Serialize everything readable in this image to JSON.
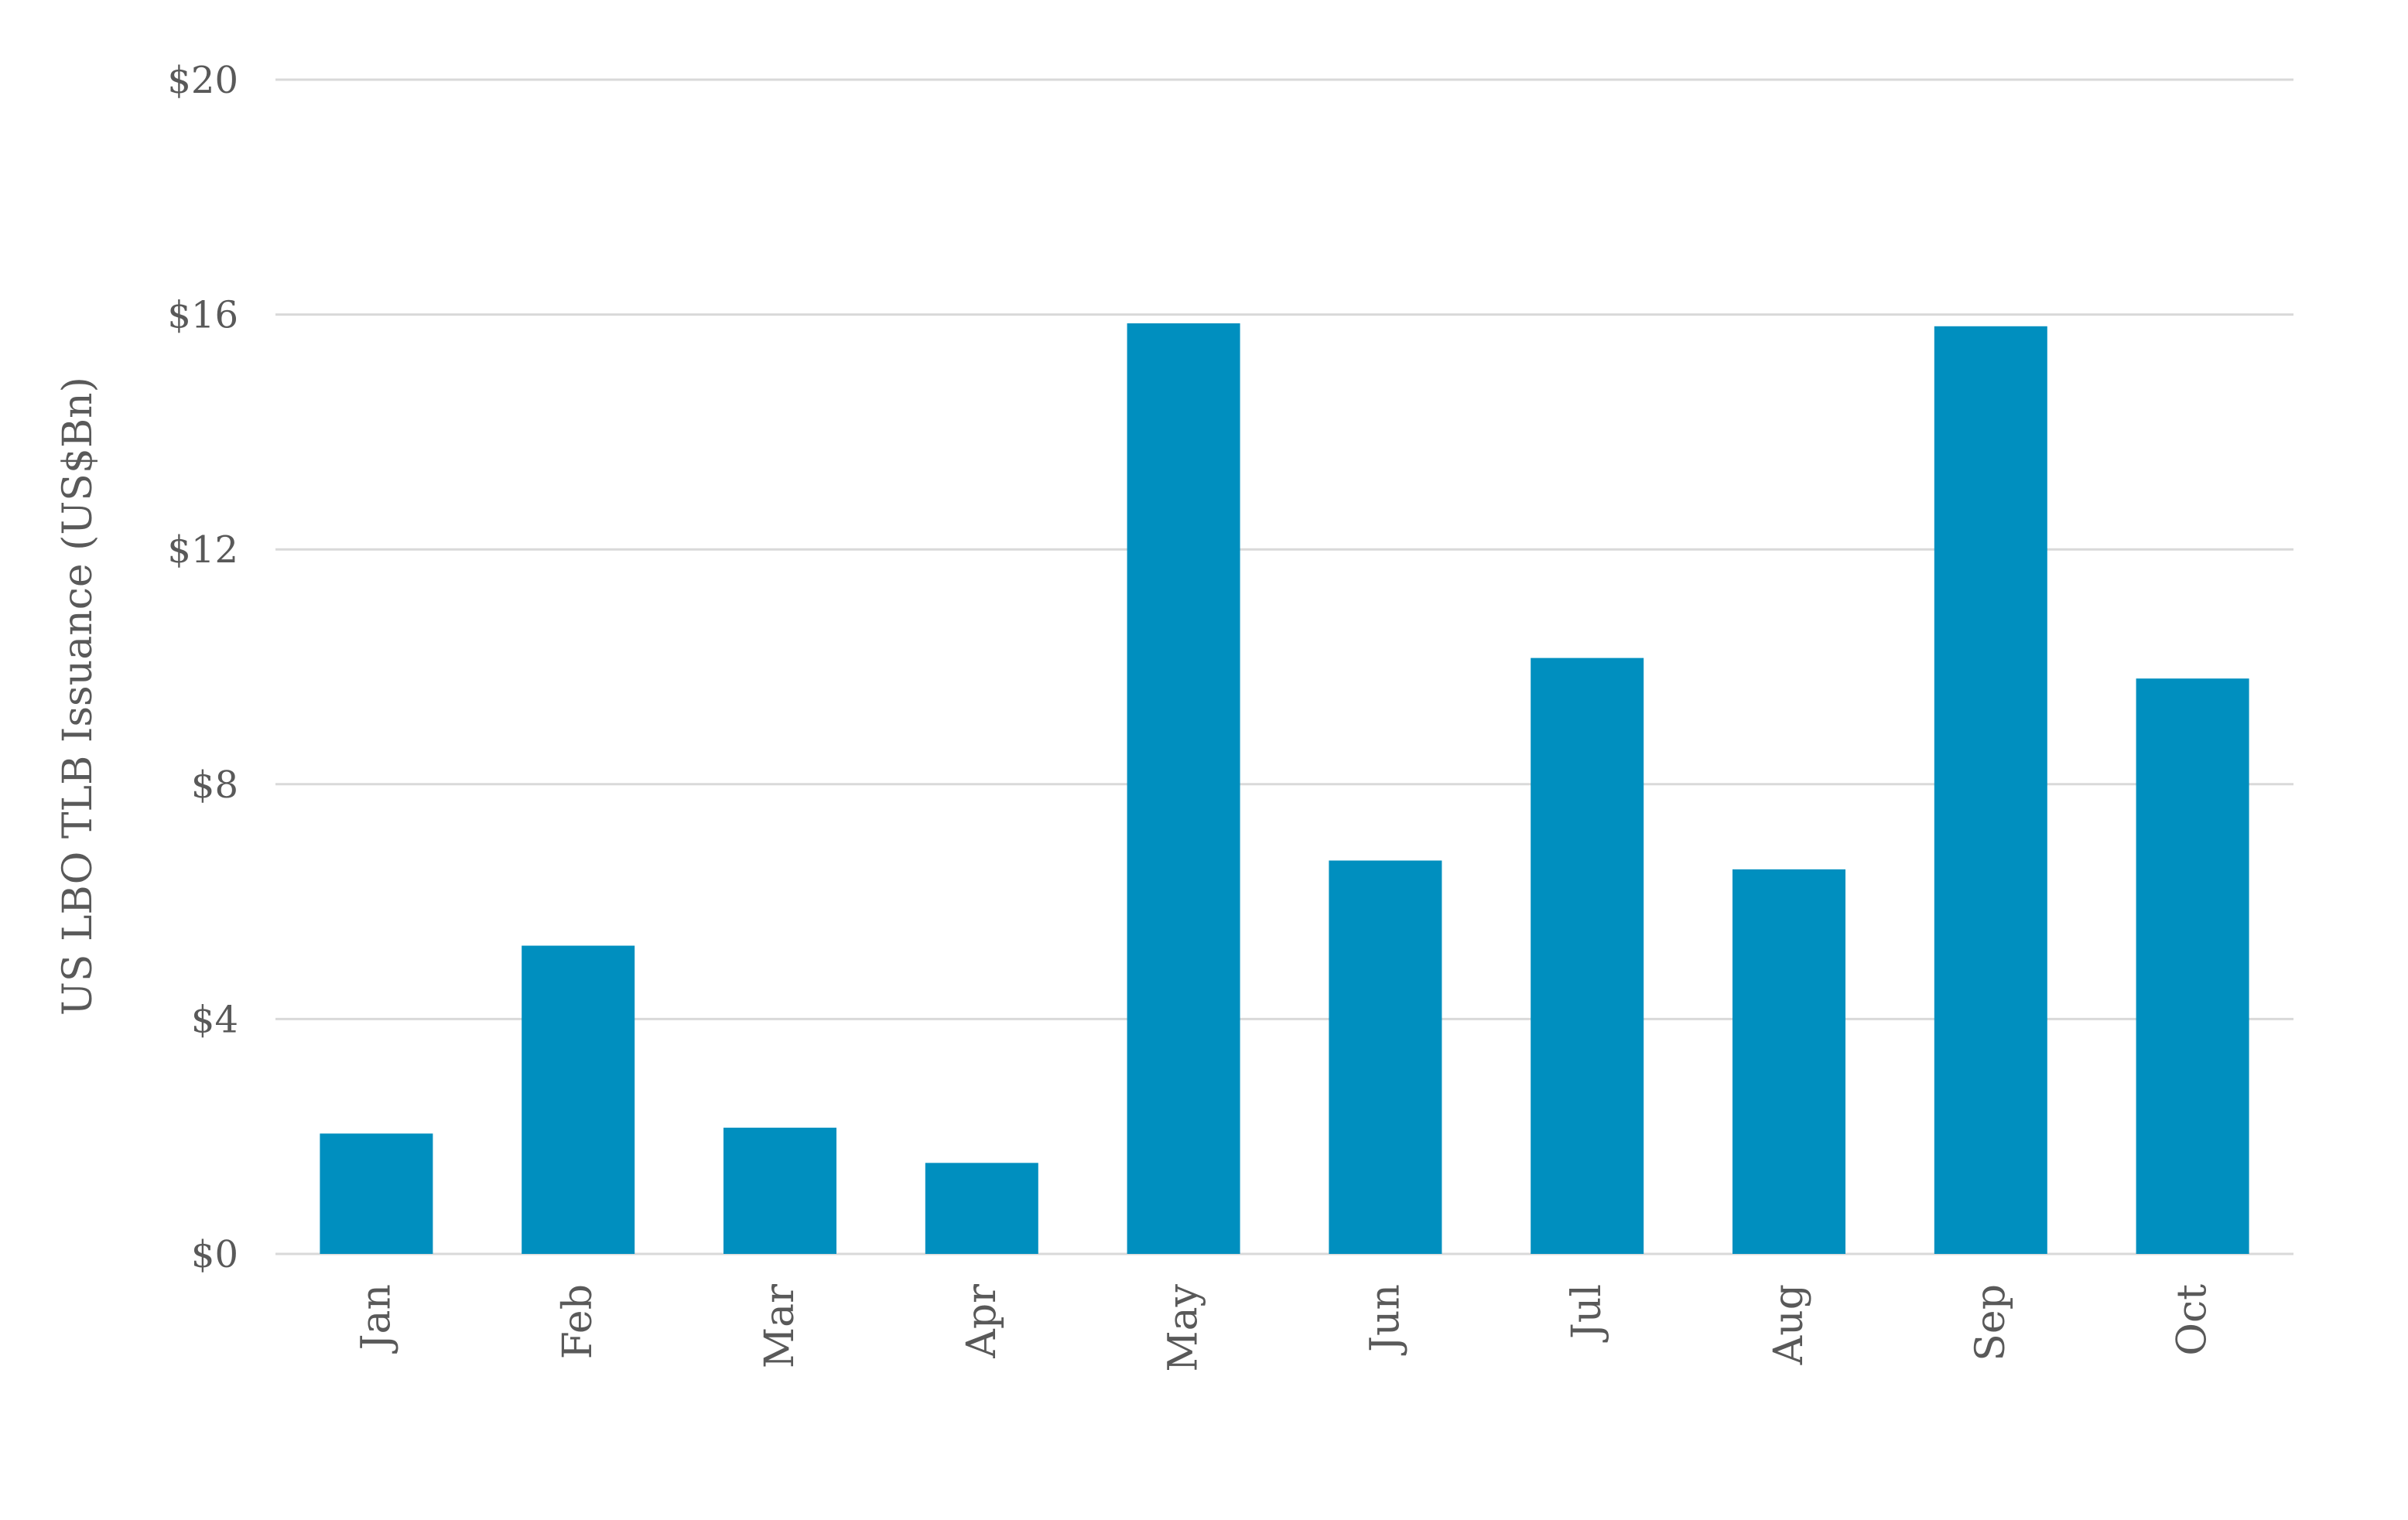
{
  "chart_data": {
    "type": "bar",
    "title": "",
    "xlabel": "",
    "ylabel": "US LBO TLB Issuance (US$Bn)",
    "categories": [
      "Jan",
      "Feb",
      "Mar",
      "Apr",
      "May",
      "Jun",
      "Jul",
      "Aug",
      "Sep",
      "Oct"
    ],
    "values": [
      2.05,
      5.25,
      2.15,
      1.55,
      15.85,
      6.7,
      10.15,
      6.55,
      15.8,
      9.8
    ],
    "ylim": [
      0,
      20
    ],
    "yticks": [
      0,
      4,
      8,
      12,
      16,
      20
    ],
    "ytick_labels": [
      "$0",
      "$4",
      "$8",
      "$12",
      "$16",
      "$20"
    ],
    "grid": true,
    "legend": "none",
    "colors": {
      "bar": "#008fbf",
      "grid": "#d9d9d9",
      "text": "#595959"
    }
  }
}
